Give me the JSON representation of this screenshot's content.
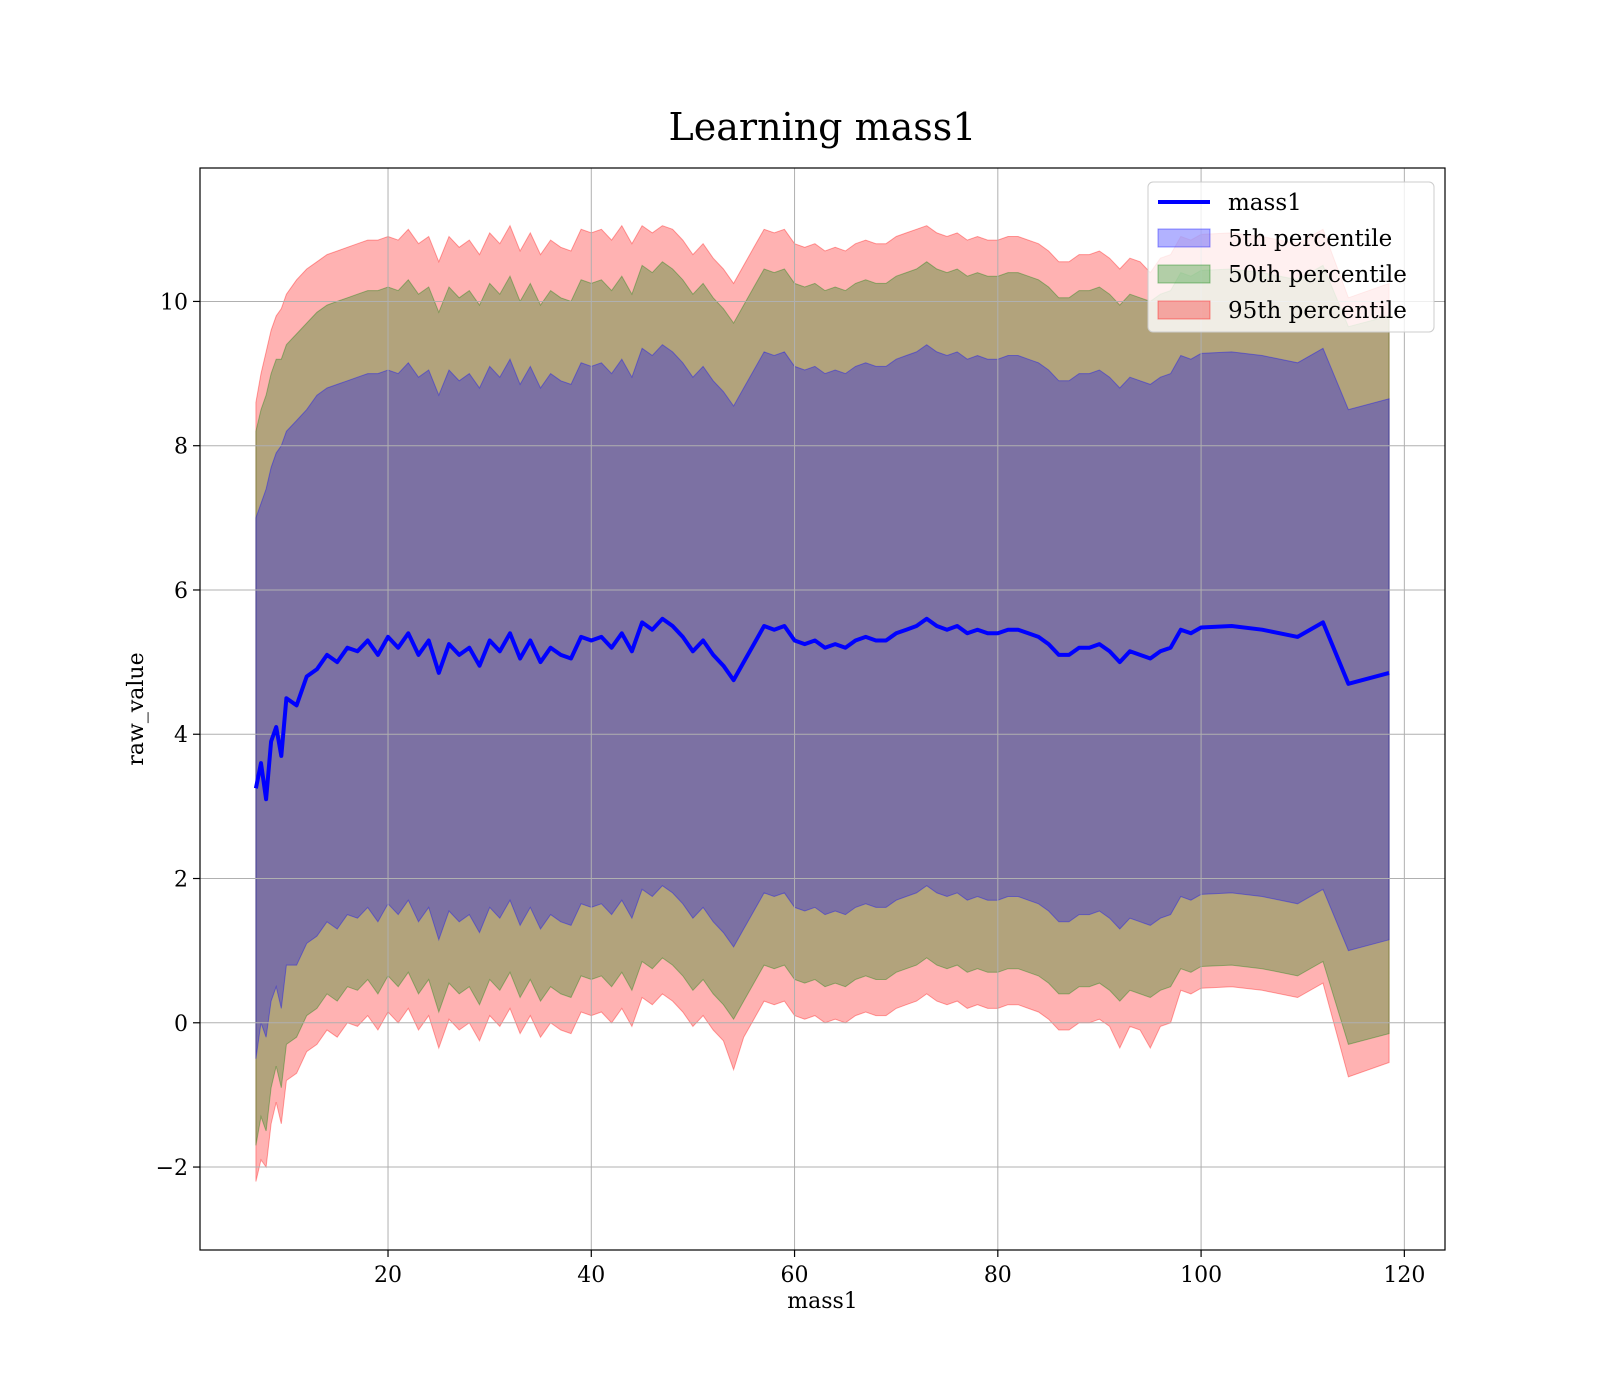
{
  "chart_data": {
    "type": "area",
    "title": "Learning mass1",
    "xlabel": "mass1",
    "ylabel": "raw_value",
    "xlim": [
      1.5,
      124
    ],
    "ylim": [
      -3.15,
      11.85
    ],
    "xticks": [
      20,
      40,
      60,
      80,
      100,
      120
    ],
    "yticks": [
      -2,
      0,
      2,
      4,
      6,
      8,
      10
    ],
    "ytick_labels": [
      "−2",
      "0",
      "2",
      "4",
      "6",
      "8",
      "10"
    ],
    "grid": true,
    "legend_position": "top-right",
    "colors": {
      "line": "#0000ff",
      "p5": "#0000ff",
      "p50": "#008000",
      "p95": "#ff0000",
      "grid": "#b0b0b0"
    },
    "x": [
      7,
      7.5,
      8,
      8.5,
      9,
      9.5,
      10,
      11,
      12,
      13,
      14,
      15,
      16,
      17,
      18,
      19,
      20,
      21,
      22,
      23,
      24,
      25,
      26,
      27,
      28,
      29,
      30,
      31,
      32,
      33,
      34,
      35,
      36,
      37,
      38,
      39,
      40,
      41,
      42,
      43,
      44,
      45,
      46,
      47,
      48,
      49,
      50,
      51,
      52,
      53,
      54,
      55,
      56,
      57,
      58,
      59,
      60,
      61,
      62,
      63,
      64,
      65,
      66,
      67,
      68,
      69,
      70,
      71,
      72,
      73,
      74,
      75,
      76,
      77,
      78,
      79,
      80,
      81,
      82,
      83,
      84,
      85,
      86,
      87,
      88,
      89,
      90,
      91,
      92,
      93,
      94,
      95,
      96,
      97,
      98,
      99,
      100,
      103,
      106,
      109.5,
      112,
      114.5,
      118.5
    ],
    "series": [
      {
        "name": "mass1",
        "values": [
          3.25,
          3.6,
          3.1,
          3.9,
          4.1,
          3.7,
          4.5,
          4.4,
          4.8,
          4.9,
          5.1,
          5.0,
          5.2,
          5.15,
          5.3,
          5.1,
          5.35,
          5.2,
          5.4,
          5.1,
          5.3,
          4.85,
          5.25,
          5.1,
          5.2,
          4.95,
          5.3,
          5.15,
          5.4,
          5.05,
          5.3,
          5.0,
          5.2,
          5.1,
          5.05,
          5.35,
          5.3,
          5.35,
          5.2,
          5.4,
          5.15,
          5.55,
          5.45,
          5.6,
          5.5,
          5.35,
          5.15,
          5.3,
          5.1,
          4.95,
          4.75,
          5.0,
          5.25,
          5.5,
          5.45,
          5.5,
          5.3,
          5.25,
          5.3,
          5.2,
          5.25,
          5.2,
          5.3,
          5.35,
          5.3,
          5.3,
          5.4,
          5.45,
          5.5,
          5.6,
          5.5,
          5.45,
          5.5,
          5.4,
          5.45,
          5.4,
          5.4,
          5.45,
          5.45,
          5.4,
          5.35,
          5.25,
          5.1,
          5.1,
          5.2,
          5.2,
          5.25,
          5.15,
          5.0,
          5.15,
          5.1,
          5.05,
          5.15,
          5.2,
          5.45,
          5.4,
          5.48,
          5.5,
          5.45,
          5.35,
          5.55,
          4.7,
          4.85
        ]
      },
      {
        "name": "5th percentile",
        "lower": [
          -0.5,
          0.0,
          -0.2,
          0.3,
          0.5,
          0.2,
          0.8,
          0.8,
          1.1,
          1.2,
          1.4,
          1.3,
          1.5,
          1.45,
          1.6,
          1.4,
          1.65,
          1.5,
          1.7,
          1.4,
          1.6,
          1.15,
          1.55,
          1.4,
          1.5,
          1.25,
          1.6,
          1.45,
          1.7,
          1.35,
          1.6,
          1.3,
          1.5,
          1.4,
          1.35,
          1.65,
          1.6,
          1.65,
          1.5,
          1.7,
          1.45,
          1.85,
          1.75,
          1.9,
          1.8,
          1.65,
          1.45,
          1.6,
          1.4,
          1.25,
          1.05,
          1.3,
          1.55,
          1.8,
          1.75,
          1.8,
          1.6,
          1.55,
          1.6,
          1.5,
          1.55,
          1.5,
          1.6,
          1.65,
          1.6,
          1.6,
          1.7,
          1.75,
          1.8,
          1.9,
          1.8,
          1.75,
          1.8,
          1.7,
          1.75,
          1.7,
          1.7,
          1.75,
          1.75,
          1.7,
          1.65,
          1.55,
          1.4,
          1.4,
          1.5,
          1.5,
          1.55,
          1.45,
          1.3,
          1.45,
          1.4,
          1.35,
          1.45,
          1.5,
          1.75,
          1.7,
          1.78,
          1.8,
          1.75,
          1.65,
          1.85,
          1.0,
          1.15
        ],
        "upper": [
          7.0,
          7.2,
          7.4,
          7.7,
          7.9,
          8.0,
          8.2,
          8.35,
          8.5,
          8.7,
          8.8,
          8.85,
          8.9,
          8.95,
          9.0,
          9.0,
          9.05,
          9.0,
          9.15,
          8.95,
          9.05,
          8.7,
          9.05,
          8.9,
          9.0,
          8.8,
          9.1,
          8.95,
          9.2,
          8.85,
          9.1,
          8.8,
          9.0,
          8.9,
          8.85,
          9.15,
          9.1,
          9.15,
          9.0,
          9.2,
          8.95,
          9.35,
          9.25,
          9.4,
          9.3,
          9.15,
          8.95,
          9.1,
          8.9,
          8.75,
          8.55,
          8.8,
          9.05,
          9.3,
          9.25,
          9.3,
          9.1,
          9.05,
          9.1,
          9.0,
          9.05,
          9.0,
          9.1,
          9.15,
          9.1,
          9.1,
          9.2,
          9.25,
          9.3,
          9.4,
          9.3,
          9.25,
          9.3,
          9.2,
          9.25,
          9.2,
          9.2,
          9.25,
          9.25,
          9.2,
          9.15,
          9.05,
          8.9,
          8.9,
          9.0,
          9.0,
          9.05,
          8.95,
          8.8,
          8.95,
          8.9,
          8.85,
          8.95,
          9.0,
          9.25,
          9.2,
          9.28,
          9.3,
          9.25,
          9.15,
          9.35,
          8.5,
          8.65
        ]
      },
      {
        "name": "50th percentile",
        "lower": [
          -1.7,
          -1.3,
          -1.5,
          -0.9,
          -0.6,
          -0.9,
          -0.3,
          -0.2,
          0.1,
          0.2,
          0.4,
          0.3,
          0.5,
          0.45,
          0.6,
          0.4,
          0.65,
          0.5,
          0.7,
          0.4,
          0.6,
          0.15,
          0.55,
          0.4,
          0.5,
          0.25,
          0.6,
          0.45,
          0.7,
          0.35,
          0.6,
          0.3,
          0.5,
          0.4,
          0.35,
          0.65,
          0.6,
          0.65,
          0.5,
          0.7,
          0.45,
          0.85,
          0.75,
          0.9,
          0.8,
          0.65,
          0.45,
          0.6,
          0.4,
          0.25,
          0.05,
          0.3,
          0.55,
          0.8,
          0.75,
          0.8,
          0.6,
          0.55,
          0.6,
          0.5,
          0.55,
          0.5,
          0.6,
          0.65,
          0.6,
          0.6,
          0.7,
          0.75,
          0.8,
          0.9,
          0.8,
          0.75,
          0.8,
          0.7,
          0.75,
          0.7,
          0.7,
          0.75,
          0.75,
          0.7,
          0.65,
          0.55,
          0.4,
          0.4,
          0.5,
          0.5,
          0.55,
          0.45,
          0.3,
          0.45,
          0.4,
          0.35,
          0.45,
          0.5,
          0.75,
          0.7,
          0.78,
          0.8,
          0.75,
          0.65,
          0.85,
          -0.3,
          -0.15
        ],
        "upper": [
          8.2,
          8.5,
          8.7,
          9.0,
          9.2,
          9.2,
          9.4,
          9.55,
          9.7,
          9.85,
          9.95,
          10.0,
          10.05,
          10.1,
          10.15,
          10.15,
          10.2,
          10.15,
          10.3,
          10.1,
          10.2,
          9.85,
          10.2,
          10.05,
          10.15,
          9.95,
          10.25,
          10.1,
          10.35,
          10.0,
          10.25,
          9.95,
          10.15,
          10.05,
          10.0,
          10.3,
          10.25,
          10.3,
          10.15,
          10.35,
          10.1,
          10.5,
          10.4,
          10.55,
          10.45,
          10.3,
          10.1,
          10.25,
          10.05,
          9.9,
          9.7,
          9.95,
          10.2,
          10.45,
          10.4,
          10.45,
          10.25,
          10.2,
          10.25,
          10.15,
          10.2,
          10.15,
          10.25,
          10.3,
          10.25,
          10.25,
          10.35,
          10.4,
          10.45,
          10.55,
          10.45,
          10.4,
          10.45,
          10.35,
          10.4,
          10.35,
          10.35,
          10.4,
          10.4,
          10.35,
          10.3,
          10.2,
          10.05,
          10.05,
          10.15,
          10.15,
          10.2,
          10.1,
          9.95,
          10.1,
          10.05,
          10.0,
          10.1,
          10.15,
          10.4,
          10.35,
          10.43,
          10.45,
          10.4,
          10.3,
          10.5,
          9.65,
          9.8
        ]
      },
      {
        "name": "95th percentile",
        "lower": [
          -2.2,
          -1.9,
          -2.0,
          -1.4,
          -1.1,
          -1.4,
          -0.8,
          -0.7,
          -0.4,
          -0.3,
          -0.1,
          -0.2,
          0.0,
          -0.05,
          0.1,
          -0.1,
          0.15,
          0.0,
          0.2,
          -0.1,
          0.1,
          -0.35,
          0.05,
          -0.1,
          0.0,
          -0.25,
          0.1,
          -0.05,
          0.2,
          -0.15,
          0.1,
          -0.2,
          0.0,
          -0.1,
          -0.15,
          0.15,
          0.1,
          0.15,
          0.0,
          0.2,
          -0.05,
          0.35,
          0.25,
          0.4,
          0.3,
          0.15,
          -0.05,
          0.1,
          -0.1,
          -0.25,
          -0.65,
          -0.2,
          0.05,
          0.3,
          0.25,
          0.3,
          0.1,
          0.05,
          0.1,
          0.0,
          0.05,
          0.0,
          0.1,
          0.15,
          0.1,
          0.1,
          0.2,
          0.25,
          0.3,
          0.4,
          0.3,
          0.25,
          0.3,
          0.2,
          0.25,
          0.2,
          0.2,
          0.25,
          0.25,
          0.2,
          0.15,
          0.05,
          -0.1,
          -0.1,
          0.0,
          0.0,
          0.05,
          -0.05,
          -0.35,
          -0.05,
          -0.1,
          -0.35,
          -0.05,
          0.0,
          0.45,
          0.4,
          0.48,
          0.5,
          0.45,
          0.35,
          0.55,
          -0.75,
          -0.55
        ],
        "upper": [
          8.6,
          9.0,
          9.3,
          9.6,
          9.8,
          9.9,
          10.1,
          10.3,
          10.45,
          10.55,
          10.65,
          10.7,
          10.75,
          10.8,
          10.85,
          10.85,
          10.9,
          10.85,
          11.0,
          10.8,
          10.9,
          10.55,
          10.9,
          10.75,
          10.85,
          10.65,
          10.95,
          10.8,
          11.05,
          10.7,
          10.95,
          10.65,
          10.85,
          10.75,
          10.7,
          11.0,
          10.95,
          11.0,
          10.85,
          11.05,
          10.8,
          11.05,
          10.95,
          11.05,
          11.0,
          10.85,
          10.65,
          10.8,
          10.6,
          10.45,
          10.25,
          10.5,
          10.75,
          11.0,
          10.95,
          11.0,
          10.8,
          10.75,
          10.8,
          10.7,
          10.75,
          10.7,
          10.8,
          10.85,
          10.8,
          10.8,
          10.9,
          10.95,
          11.0,
          11.05,
          10.95,
          10.9,
          10.95,
          10.85,
          10.9,
          10.85,
          10.85,
          10.9,
          10.9,
          10.85,
          10.8,
          10.7,
          10.55,
          10.55,
          10.65,
          10.65,
          10.7,
          10.6,
          10.45,
          10.6,
          10.55,
          10.4,
          10.6,
          10.65,
          10.9,
          10.85,
          10.93,
          10.95,
          10.9,
          10.8,
          11.0,
          10.05,
          10.25
        ]
      }
    ]
  }
}
